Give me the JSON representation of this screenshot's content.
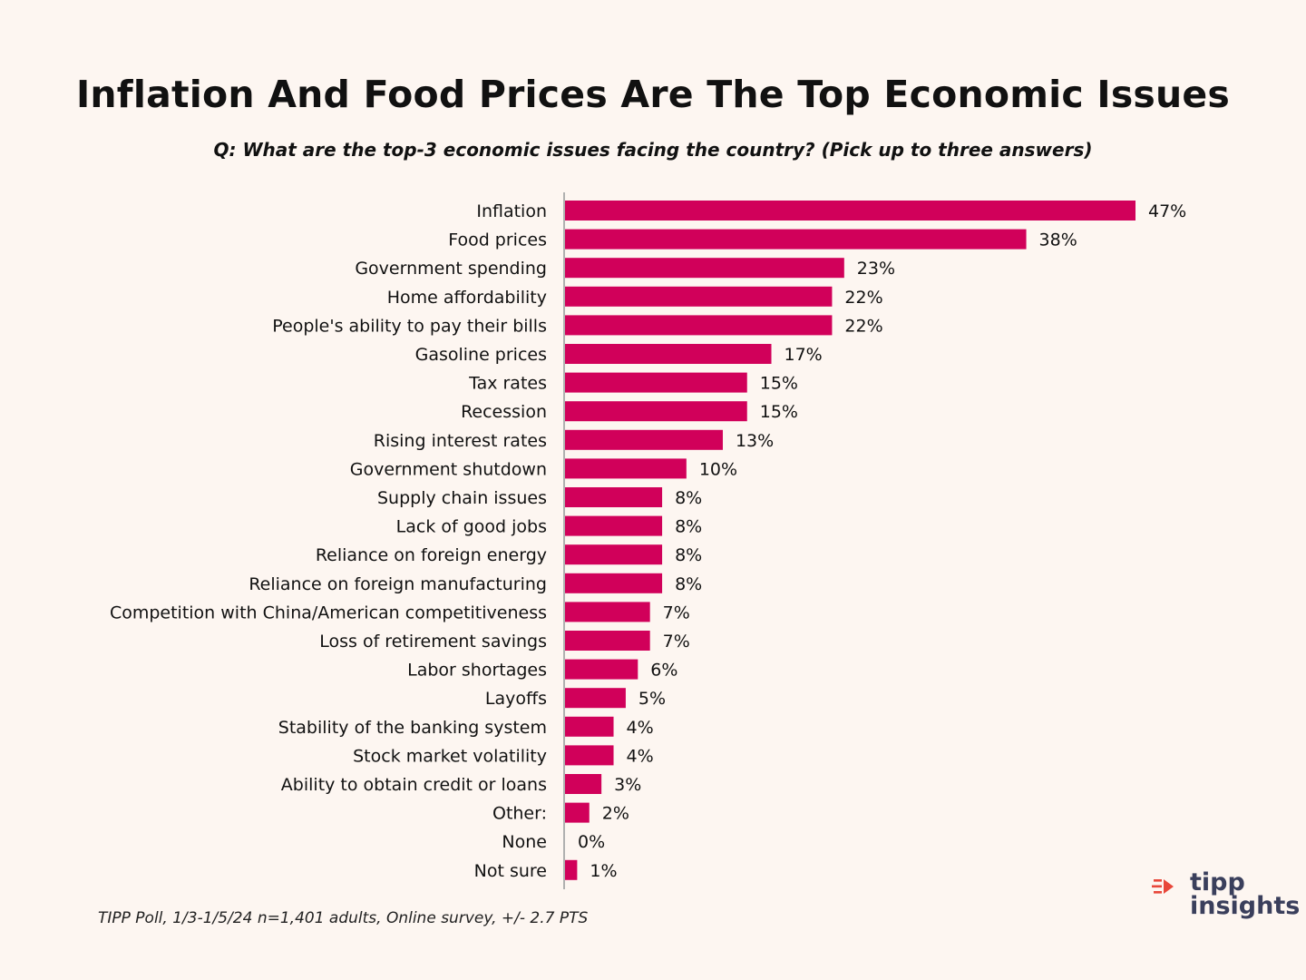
{
  "title": "Inflation And Food Prices Are The Top Economic Issues",
  "subtitle": "Q: What are the top-3 economic issues facing the country? (Pick up to three answers)",
  "footnote": "TIPP Poll, 1/3-1/5/24 n=1,401 adults, Online survey, +/- 2.7 PTS",
  "logo": {
    "line1": "tipp",
    "line2": "insights",
    "icon": "tipp-insights-logo-icon"
  },
  "colors": {
    "bar": "#d1005a",
    "axis": "#b0b0b0",
    "background": "#fdf6f1",
    "logo_text": "#3a3f5c",
    "logo_accent": "#e8473a"
  },
  "chart_data": {
    "type": "bar",
    "orientation": "horizontal",
    "categories": [
      "Inflation",
      "Food prices",
      "Government spending",
      "Home affordability",
      "People's ability to pay their bills",
      "Gasoline prices",
      "Tax rates",
      "Recession",
      "Rising interest rates",
      "Government shutdown",
      "Supply chain issues",
      "Lack of good jobs",
      "Reliance on foreign energy",
      "Reliance on foreign manufacturing",
      "Competition with China/American competitiveness",
      "Loss of retirement savings",
      "Labor shortages",
      "Layoffs",
      "Stability of the banking system",
      "Stock market volatility",
      "Ability to obtain credit or loans",
      "Other:",
      "None",
      "Not sure"
    ],
    "values": [
      47,
      38,
      23,
      22,
      22,
      17,
      15,
      15,
      13,
      10,
      8,
      8,
      8,
      8,
      7,
      7,
      6,
      5,
      4,
      4,
      3,
      2,
      0,
      1
    ],
    "value_labels": [
      "47%",
      "38%",
      "23%",
      "22%",
      "22%",
      "17%",
      "15%",
      "15%",
      "13%",
      "10%",
      "8%",
      "8%",
      "8%",
      "8%",
      "7%",
      "7%",
      "6%",
      "5%",
      "4%",
      "4%",
      "3%",
      "2%",
      "0%",
      "1%"
    ],
    "unit": "%",
    "xlim": [
      0,
      47
    ],
    "grid": false,
    "legend": "none"
  }
}
